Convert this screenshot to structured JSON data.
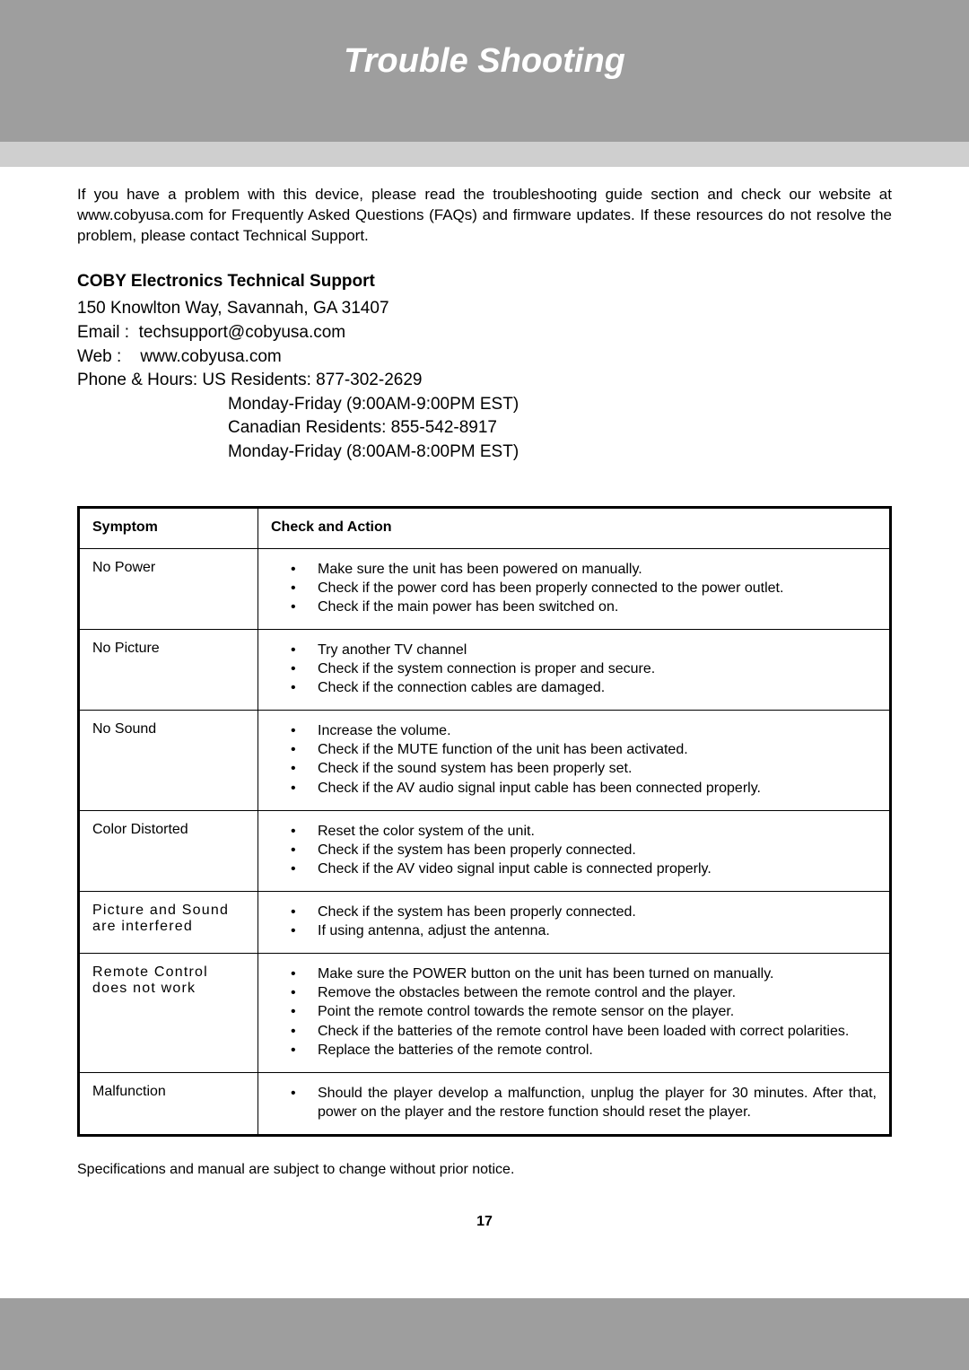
{
  "header": {
    "title": "Trouble Shooting",
    "title_color": "#ffffff",
    "band_color": "#9e9e9e",
    "sub_band_color": "#cfcfcf",
    "title_fontsize": 38
  },
  "intro": "If you have a problem with this device, please read the troubleshooting guide section and check our website at www.cobyusa.com for Frequently Asked Questions (FAQs) and firmware updates. If these resources do not resolve the problem, please contact Technical Support.",
  "support": {
    "heading": "COBY Electronics Technical Support",
    "address": "150 Knowlton Way, Savannah, GA 31407",
    "email_label": "Email :  ",
    "email": "techsupport@cobyusa.com",
    "web_label": "Web :    ",
    "web": "www.cobyusa.com",
    "phone_label": "Phone & Hours: ",
    "phone_us": "US Residents: 877-302-2629",
    "hours_us": "Monday-Friday (9:00AM-9:00PM EST)",
    "phone_ca": "Canadian Residents: 855-542-8917",
    "hours_ca": "Monday-Friday (8:00AM-8:00PM EST)"
  },
  "table": {
    "header_symptom": "Symptom",
    "header_action": "Check and Action",
    "border_color": "#000000",
    "text_color": "#000000",
    "rows": [
      {
        "symptom": "No Power",
        "actions": [
          "Make sure the unit has been powered on manually.",
          "Check if the power cord has been properly connected to the power outlet.",
          "Check if the main power has been switched on."
        ]
      },
      {
        "symptom": "No Picture",
        "actions": [
          "Try another TV channel",
          "Check if the system connection is proper and secure.",
          "Check if the connection cables are damaged."
        ]
      },
      {
        "symptom": "No Sound",
        "actions": [
          "Increase the volume.",
          "Check if the MUTE function of the unit has been activated.",
          "Check if the sound system has been properly set.",
          "Check if the AV audio signal input cable has been connected properly."
        ]
      },
      {
        "symptom": "Color Distorted",
        "actions": [
          "Reset the color system of the unit.",
          "Check if the system has been properly connected.",
          "Check if the AV video signal input cable is connected properly."
        ]
      },
      {
        "symptom": "Picture and Sound are interfered",
        "symptom_spaced": true,
        "actions": [
          "Check if the system has been properly connected.",
          "If using antenna, adjust the antenna."
        ]
      },
      {
        "symptom": "Remote Control does not work",
        "symptom_spaced": true,
        "actions": [
          "Make sure the POWER button on the unit has been turned on manually.",
          "Remove the obstacles between the remote control and the player.",
          "Point the remote control towards the remote sensor on the player.",
          "Check if the batteries of the remote control have been loaded with correct polarities.",
          "Replace the batteries of the remote control."
        ]
      },
      {
        "symptom": "Malfunction",
        "actions": [
          "Should the player develop a malfunction, unplug the player for 30 minutes. After that, power on the player and the restore function should reset the player."
        ]
      }
    ]
  },
  "footnote": "Specifications and manual are subject to change without prior notice.",
  "page_number": "17"
}
